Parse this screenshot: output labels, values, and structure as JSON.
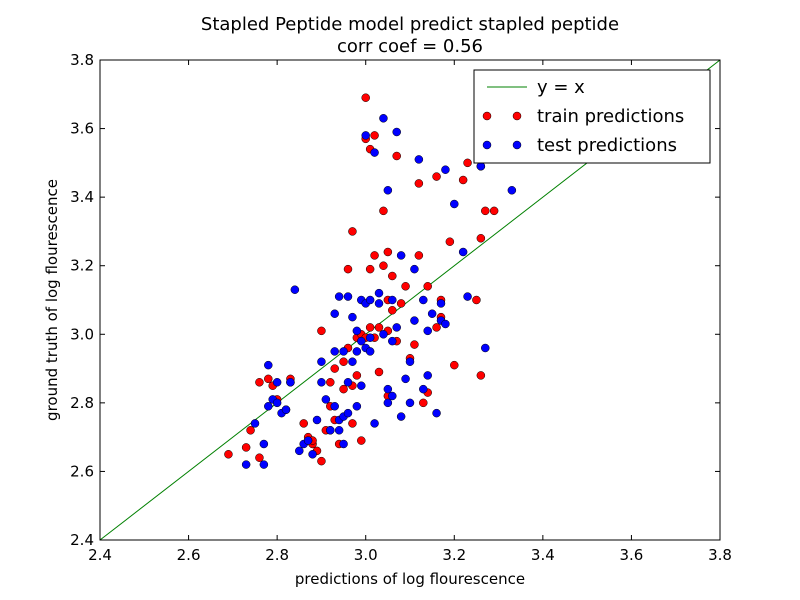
{
  "chart_data": {
    "type": "scatter",
    "title": "Stapled Peptide model predict stapled peptide",
    "subtitle": "corr coef = 0.56",
    "xlabel": "predictions of log flourescence",
    "ylabel": "ground truth of log flourescence",
    "xlim": [
      2.4,
      3.8
    ],
    "ylim": [
      2.4,
      3.8
    ],
    "xticks": [
      "2.4",
      "2.6",
      "2.8",
      "3.0",
      "3.2",
      "3.4",
      "3.6",
      "3.8"
    ],
    "yticks": [
      "2.4",
      "2.6",
      "2.8",
      "3.0",
      "3.2",
      "3.4",
      "3.6",
      "3.8"
    ],
    "grid": false,
    "legend_position": "top-right",
    "colors": {
      "line": "#008000",
      "train": "#ff0000",
      "test": "#0000ff"
    },
    "series": [
      {
        "name": "y = x",
        "kind": "line",
        "color": "#008000",
        "x": [
          2.4,
          3.8
        ],
        "y": [
          2.4,
          3.8
        ]
      },
      {
        "name": "train predictions",
        "kind": "scatter",
        "color": "#ff0000",
        "x": [
          2.69,
          2.73,
          2.74,
          2.76,
          2.76,
          2.78,
          2.79,
          2.8,
          2.82,
          2.83,
          2.83,
          2.86,
          2.87,
          2.88,
          2.88,
          2.89,
          2.9,
          2.9,
          2.91,
          2.92,
          2.92,
          2.93,
          2.93,
          2.94,
          2.95,
          2.95,
          2.96,
          2.96,
          2.97,
          2.97,
          2.97,
          2.98,
          2.98,
          2.99,
          2.99,
          3.0,
          3.0,
          3.0,
          3.01,
          3.01,
          3.01,
          3.02,
          3.02,
          3.02,
          3.03,
          3.03,
          3.04,
          3.04,
          3.05,
          3.05,
          3.05,
          3.05,
          3.06,
          3.06,
          3.07,
          3.07,
          3.08,
          3.09,
          3.1,
          3.11,
          3.12,
          3.12,
          3.13,
          3.14,
          3.14,
          3.16,
          3.16,
          3.17,
          3.17,
          3.19,
          3.2,
          3.22,
          3.23,
          3.25,
          3.26,
          3.26,
          3.26,
          3.27,
          3.29
        ],
        "y": [
          2.65,
          2.67,
          2.72,
          2.64,
          2.86,
          2.87,
          2.85,
          2.81,
          2.78,
          2.86,
          2.87,
          2.74,
          2.7,
          2.68,
          2.69,
          2.66,
          2.63,
          3.01,
          2.72,
          2.86,
          2.79,
          2.75,
          2.9,
          2.68,
          2.92,
          2.84,
          2.96,
          3.19,
          2.74,
          2.85,
          3.3,
          2.99,
          2.88,
          3.0,
          2.69,
          2.99,
          3.57,
          3.69,
          3.02,
          3.19,
          3.54,
          2.99,
          3.23,
          3.58,
          2.89,
          3.02,
          3.2,
          3.36,
          3.01,
          2.82,
          3.1,
          3.24,
          3.17,
          3.07,
          3.52,
          2.98,
          3.09,
          3.14,
          2.93,
          2.97,
          3.44,
          3.23,
          2.8,
          3.14,
          2.83,
          3.46,
          3.02,
          3.05,
          3.1,
          3.27,
          2.91,
          3.45,
          3.5,
          3.1,
          2.88,
          3.49,
          3.28,
          3.36,
          3.36
        ]
      },
      {
        "name": "test predictions",
        "kind": "scatter",
        "color": "#0000ff",
        "x": [
          2.73,
          2.75,
          2.77,
          2.77,
          2.78,
          2.78,
          2.79,
          2.8,
          2.8,
          2.81,
          2.82,
          2.83,
          2.84,
          2.85,
          2.86,
          2.87,
          2.88,
          2.89,
          2.9,
          2.9,
          2.91,
          2.92,
          2.92,
          2.93,
          2.93,
          2.93,
          2.94,
          2.94,
          2.94,
          2.95,
          2.95,
          2.95,
          2.96,
          2.96,
          2.96,
          2.97,
          2.97,
          2.98,
          2.98,
          2.98,
          2.99,
          2.99,
          2.99,
          3.0,
          3.0,
          3.0,
          3.01,
          3.01,
          3.01,
          3.02,
          3.02,
          3.03,
          3.03,
          3.04,
          3.04,
          3.05,
          3.05,
          3.05,
          3.06,
          3.06,
          3.06,
          3.07,
          3.07,
          3.08,
          3.08,
          3.09,
          3.1,
          3.1,
          3.11,
          3.11,
          3.12,
          3.13,
          3.13,
          3.14,
          3.14,
          3.15,
          3.16,
          3.17,
          3.17,
          3.18,
          3.18,
          3.2,
          3.22,
          3.23,
          3.26,
          3.27,
          3.33
        ],
        "y": [
          2.62,
          2.74,
          2.62,
          2.68,
          2.79,
          2.91,
          2.81,
          2.86,
          2.8,
          2.77,
          2.78,
          2.86,
          3.13,
          2.66,
          2.68,
          2.69,
          2.65,
          2.75,
          2.92,
          2.86,
          2.81,
          2.72,
          2.72,
          2.79,
          2.95,
          3.06,
          2.72,
          3.11,
          2.75,
          2.76,
          2.68,
          2.95,
          2.86,
          3.11,
          2.77,
          3.05,
          2.92,
          2.79,
          3.01,
          2.95,
          3.1,
          2.85,
          2.98,
          2.96,
          3.09,
          3.58,
          2.99,
          2.95,
          3.1,
          2.74,
          3.53,
          3.09,
          3.12,
          3.0,
          3.63,
          2.8,
          2.84,
          3.42,
          2.82,
          2.98,
          3.1,
          3.02,
          3.59,
          2.76,
          3.23,
          2.87,
          2.8,
          2.92,
          3.04,
          3.19,
          3.51,
          2.84,
          3.1,
          2.88,
          3.01,
          3.06,
          2.77,
          3.09,
          3.04,
          3.03,
          3.48,
          3.38,
          3.24,
          3.11,
          3.49,
          2.96,
          3.42
        ]
      }
    ]
  }
}
